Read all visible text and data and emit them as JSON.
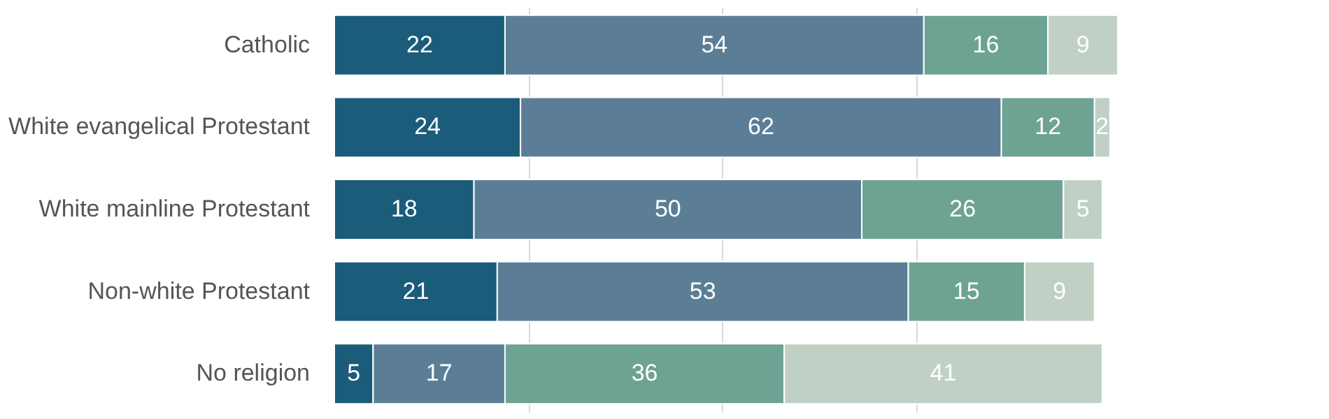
{
  "chart_data": {
    "type": "bar",
    "orientation": "horizontal",
    "stacked": true,
    "data_labels": true,
    "grid": "x",
    "legend": false,
    "tick_labels": "y",
    "categories": [
      "Catholic",
      "White evangelical Protestant",
      "White mainline Protestant",
      "Non-white Protestant",
      "No religion"
    ],
    "xticks": [
      {
        "value": 25,
        "label": null
      },
      {
        "value": 50,
        "label": null
      },
      {
        "value": 75,
        "label": null
      }
    ],
    "series": [
      {
        "color": "#1a5c7a",
        "values": [
          22,
          24,
          18,
          21,
          5
        ]
      },
      {
        "color": "#5b7e96",
        "values": [
          54,
          62,
          50,
          53,
          17
        ]
      },
      {
        "color": "#6ea394",
        "values": [
          16,
          12,
          26,
          15,
          36
        ]
      },
      {
        "color": "#c0d0c4",
        "values": [
          9,
          2,
          5,
          9,
          41
        ]
      }
    ]
  }
}
